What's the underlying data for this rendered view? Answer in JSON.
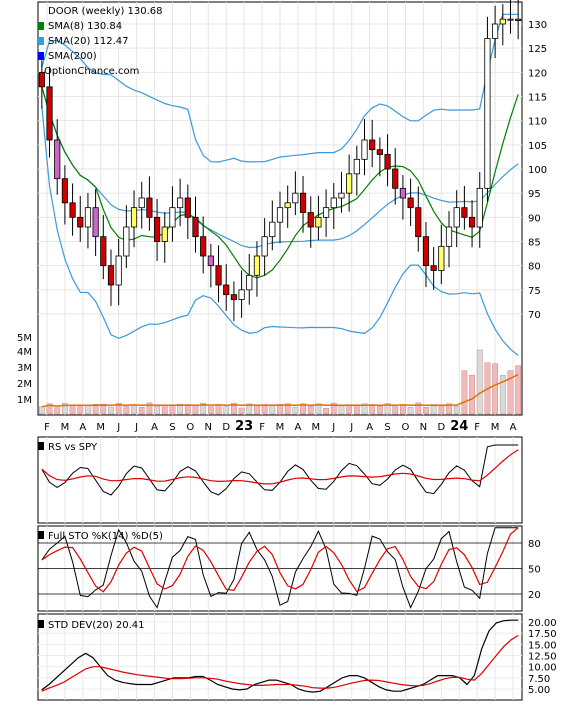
{
  "chart_data": [
    {
      "type": "candlestick",
      "panel": "price",
      "legend": [
        {
          "label": "DOOR (weekly) 130.68",
          "color": null
        },
        {
          "label": "SMA(8) 130.84",
          "color": "#008000"
        },
        {
          "label": "SMA(20) 112.47",
          "color": "#3a9ad9"
        },
        {
          "label": "SMA(200)",
          "color": "#0000ff"
        }
      ],
      "watermark": "OptionChance.com",
      "y_ticks": [
        70,
        75,
        80,
        85,
        90,
        95,
        100,
        105,
        110,
        115,
        120,
        125,
        130
      ],
      "volume_ticks": [
        "1M",
        "2M",
        "3M",
        "4M",
        "5M"
      ],
      "x_month_labels": [
        "F",
        "M",
        "A",
        "M",
        "J",
        "J",
        "A",
        "S",
        "O",
        "N",
        "D",
        "23",
        "F",
        "M",
        "A",
        "M",
        "J",
        "J",
        "A",
        "S",
        "O",
        "N",
        "D",
        "24",
        "F",
        "M",
        "A"
      ],
      "year_labels": [
        "23",
        "24"
      ],
      "close_approx": [
        117,
        106,
        98,
        93,
        90,
        88,
        92,
        86,
        80,
        76,
        82,
        88,
        92,
        94,
        90,
        85,
        88,
        92,
        94,
        90,
        86,
        82,
        80,
        76,
        74,
        73,
        75,
        78,
        82,
        86,
        89,
        92,
        93,
        95,
        91,
        88,
        90,
        92,
        94,
        95,
        99,
        102,
        106,
        104,
        103,
        100,
        96,
        94,
        92,
        86,
        80,
        79,
        84,
        88,
        92,
        90,
        88,
        96,
        127,
        130,
        131,
        131,
        130.7
      ],
      "colors": {
        "up": "#ffff66",
        "down": "#cc0000",
        "down_alt": "#cc66cc",
        "sma8": "#008000",
        "sma20": "#3a9ad9",
        "volume": "#f4b8b8",
        "volume_avg": "#e07000"
      }
    },
    {
      "type": "line",
      "panel": "rs",
      "legend": [
        {
          "label": "RS vs SPY",
          "color": "#000000"
        }
      ],
      "series": [
        {
          "color": "#000000"
        },
        {
          "color": "#dd0000"
        }
      ]
    },
    {
      "type": "line",
      "panel": "stochastic",
      "legend": [
        {
          "label": "Full STO %K(14) %D(5)",
          "color": "#000000"
        }
      ],
      "y_ticks": [
        20,
        50,
        80
      ],
      "series": [
        {
          "color": "#000000"
        },
        {
          "color": "#dd0000"
        }
      ]
    },
    {
      "type": "line",
      "panel": "stddev",
      "legend": [
        {
          "label": "STD DEV(20) 20.41",
          "color": "#000000"
        }
      ],
      "y_ticks": [
        "5.00",
        "7.50",
        "10.00",
        "12.50",
        "15.00",
        "17.50",
        "20.00"
      ],
      "y_tick_values": [
        5,
        7.5,
        10,
        12.5,
        15,
        17.5,
        20
      ],
      "series": [
        {
          "color": "#000000",
          "values": [
            4.8,
            6,
            7.5,
            9,
            10.5,
            12,
            13,
            12,
            10,
            8,
            7,
            6.5,
            6.2,
            6,
            6,
            6,
            6.5,
            7,
            7.5,
            7.5,
            7.5,
            7.8,
            7.8,
            7,
            6,
            5.5,
            5,
            4.8,
            5,
            6,
            6.5,
            7,
            7,
            6.5,
            6,
            5,
            4.5,
            4.3,
            4.5,
            5.5,
            6.5,
            7.5,
            8,
            8,
            7.5,
            6.5,
            5.5,
            4.8,
            4.5,
            4.5,
            5,
            5.5,
            6,
            7,
            8,
            8,
            8,
            7.5,
            6,
            8,
            14,
            18,
            19.8,
            20.3,
            20.4,
            20.41
          ]
        },
        {
          "color": "#dd0000",
          "values": [
            4.5,
            5.2,
            5.8,
            6.5,
            7.5,
            8.5,
            9.5,
            10,
            10,
            9.6,
            9.2,
            8.8,
            8.5,
            8.2,
            8,
            7.8,
            7.6,
            7.4,
            7.3,
            7.3,
            7.4,
            7.5,
            7.5,
            7.4,
            7.2,
            6.8,
            6.5,
            6.2,
            6,
            5.8,
            5.8,
            5.9,
            6,
            6,
            6,
            5.8,
            5.6,
            5.3,
            5.2,
            5.2,
            5.4,
            5.8,
            6.2,
            6.6,
            6.9,
            7,
            6.9,
            6.6,
            6.3,
            6,
            5.8,
            5.7,
            5.8,
            6.2,
            6.8,
            7.3,
            7.6,
            7.6,
            7.2,
            7,
            8.5,
            10.5,
            12.5,
            14.5,
            16,
            17
          ]
        }
      ]
    }
  ]
}
